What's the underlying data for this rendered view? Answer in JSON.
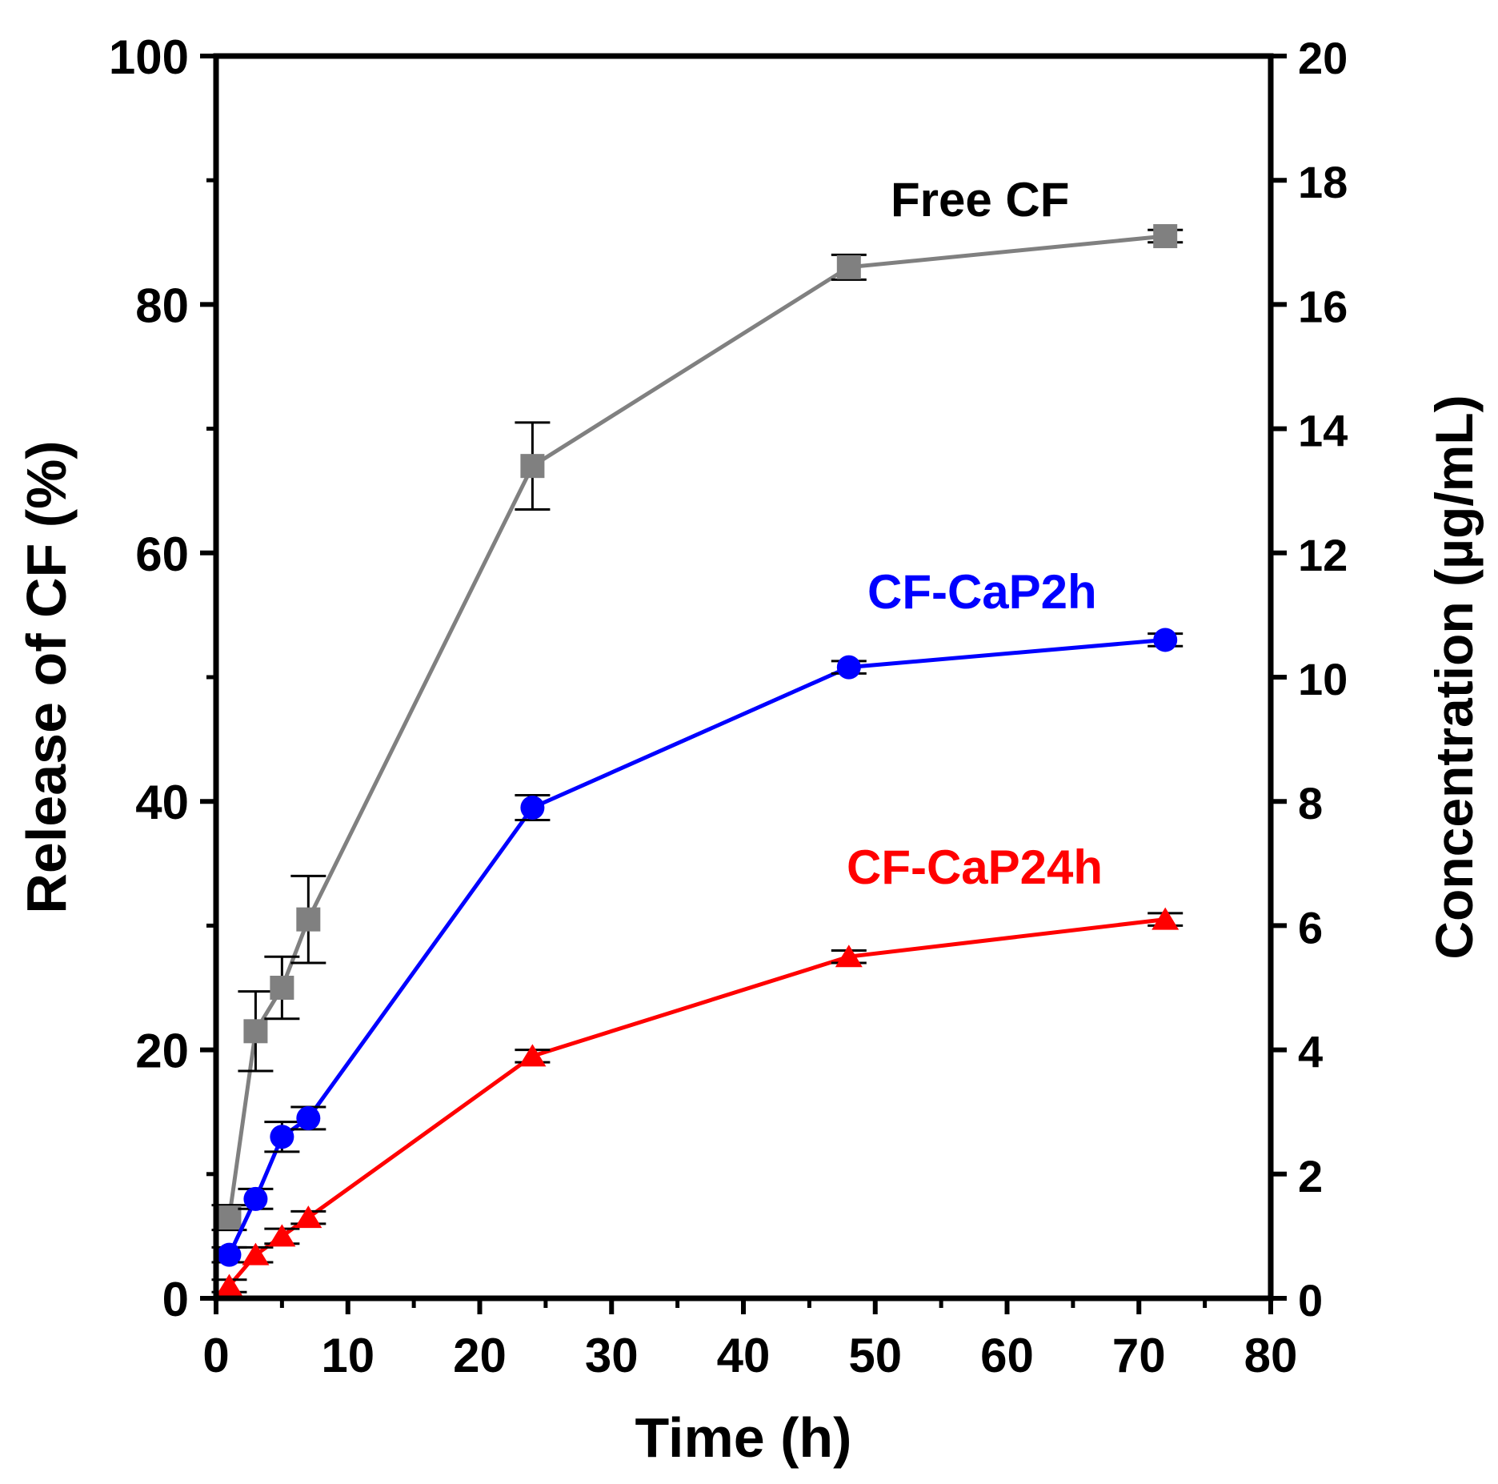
{
  "chart_data": {
    "type": "line",
    "title": "",
    "xlabel": "Time (h)",
    "ylabel": "Release of CF (%)",
    "y2label": "Concentration (µg/mL)",
    "xlim": [
      0,
      80
    ],
    "ylim": [
      0,
      100
    ],
    "y2lim": [
      0,
      20
    ],
    "xticks": [
      0,
      10,
      20,
      30,
      40,
      50,
      60,
      70,
      80
    ],
    "yticks": [
      0,
      20,
      40,
      60,
      80,
      100
    ],
    "y2ticks": [
      0,
      2,
      4,
      6,
      8,
      10,
      12,
      14,
      16,
      18,
      20
    ],
    "grid": false,
    "x": [
      1,
      3,
      5,
      7,
      24,
      48,
      72
    ],
    "series": [
      {
        "name": "Free CF",
        "color": "#808080",
        "marker": "square",
        "values": [
          6.5,
          21.5,
          25,
          30.5,
          67,
          83,
          85.5
        ],
        "errors": [
          1,
          3.2,
          2.5,
          3.5,
          3.5,
          1,
          0.5
        ]
      },
      {
        "name": "CF-CaP2h",
        "color": "#0000ff",
        "marker": "circle",
        "values": [
          3.5,
          8,
          13,
          14.5,
          39.5,
          50.8,
          53
        ],
        "errors": [
          0.6,
          0.8,
          1.2,
          0.9,
          1,
          0.5,
          0.5
        ]
      },
      {
        "name": "CF-CaP24h",
        "color": "#ff0000",
        "marker": "triangle",
        "values": [
          1,
          3.5,
          5,
          6.5,
          19.5,
          27.5,
          30.5
        ],
        "errors": [
          0.5,
          0.6,
          0.6,
          0.5,
          0.5,
          0.5,
          0.5
        ]
      }
    ]
  }
}
